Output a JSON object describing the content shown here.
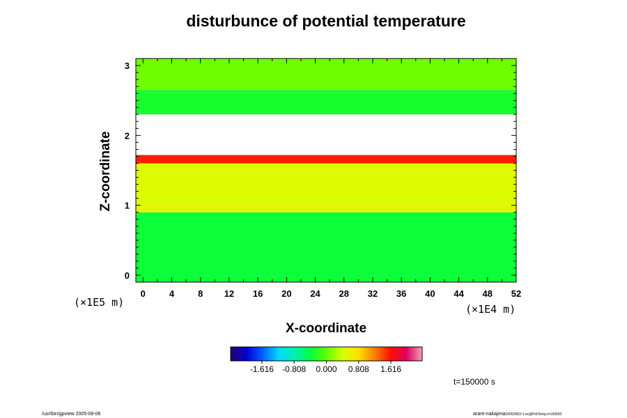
{
  "chart_data": {
    "type": "heatmap",
    "title": "disturbunce of potential temperature",
    "xlabel": "X-coordinate",
    "ylabel": "Z-coordinate",
    "x_unit": "(×1E4 m)",
    "y_unit": "(×1E5 m)",
    "xlim": [
      -1,
      52
    ],
    "ylim": [
      -0.1,
      3.1
    ],
    "xticks": [
      "0",
      "4",
      "8",
      "12",
      "16",
      "20",
      "24",
      "28",
      "32",
      "36",
      "40",
      "44",
      "48",
      "52"
    ],
    "yticks": [
      "0",
      "1",
      "2",
      "3"
    ],
    "colorbar": {
      "ticks": [
        "-1.616",
        "-0.808",
        "0.000",
        "0.808",
        "1.616"
      ],
      "tick_values": [
        -1.616,
        -0.808,
        0.0,
        0.808,
        1.616
      ],
      "range": [
        -2.4,
        2.4
      ],
      "colormap": [
        "#24006e",
        "#0000d0",
        "#0060ff",
        "#00d8ff",
        "#00f0b0",
        "#00ff40",
        "#60ff00",
        "#d8ff00",
        "#ffe000",
        "#ff8000",
        "#ff1000",
        "#e00060",
        "#f0a0b0"
      ]
    },
    "field_bands": [
      {
        "z_range": [
          -0.1,
          0.9
        ],
        "value": -0.35
      },
      {
        "z_range": [
          0.9,
          1.0
        ],
        "value": 0.55
      },
      {
        "z_range": [
          1.0,
          1.6
        ],
        "value": 0.45
      },
      {
        "z_range": [
          1.6,
          1.72
        ],
        "value": 1.55
      },
      {
        "z_range": [
          1.72,
          2.3
        ],
        "value": null
      },
      {
        "z_range": [
          2.3,
          2.65
        ],
        "value": -0.3
      },
      {
        "z_range": [
          2.65,
          3.1
        ],
        "value": 0.05
      }
    ],
    "time_label": "t=150000 s"
  },
  "footer": {
    "left": "/usr/bin/gpview 2005-09-06",
    "right_main": "arare-nakajima",
    "right_small": "20050903-1.nc@PotTemp,t=150000"
  }
}
